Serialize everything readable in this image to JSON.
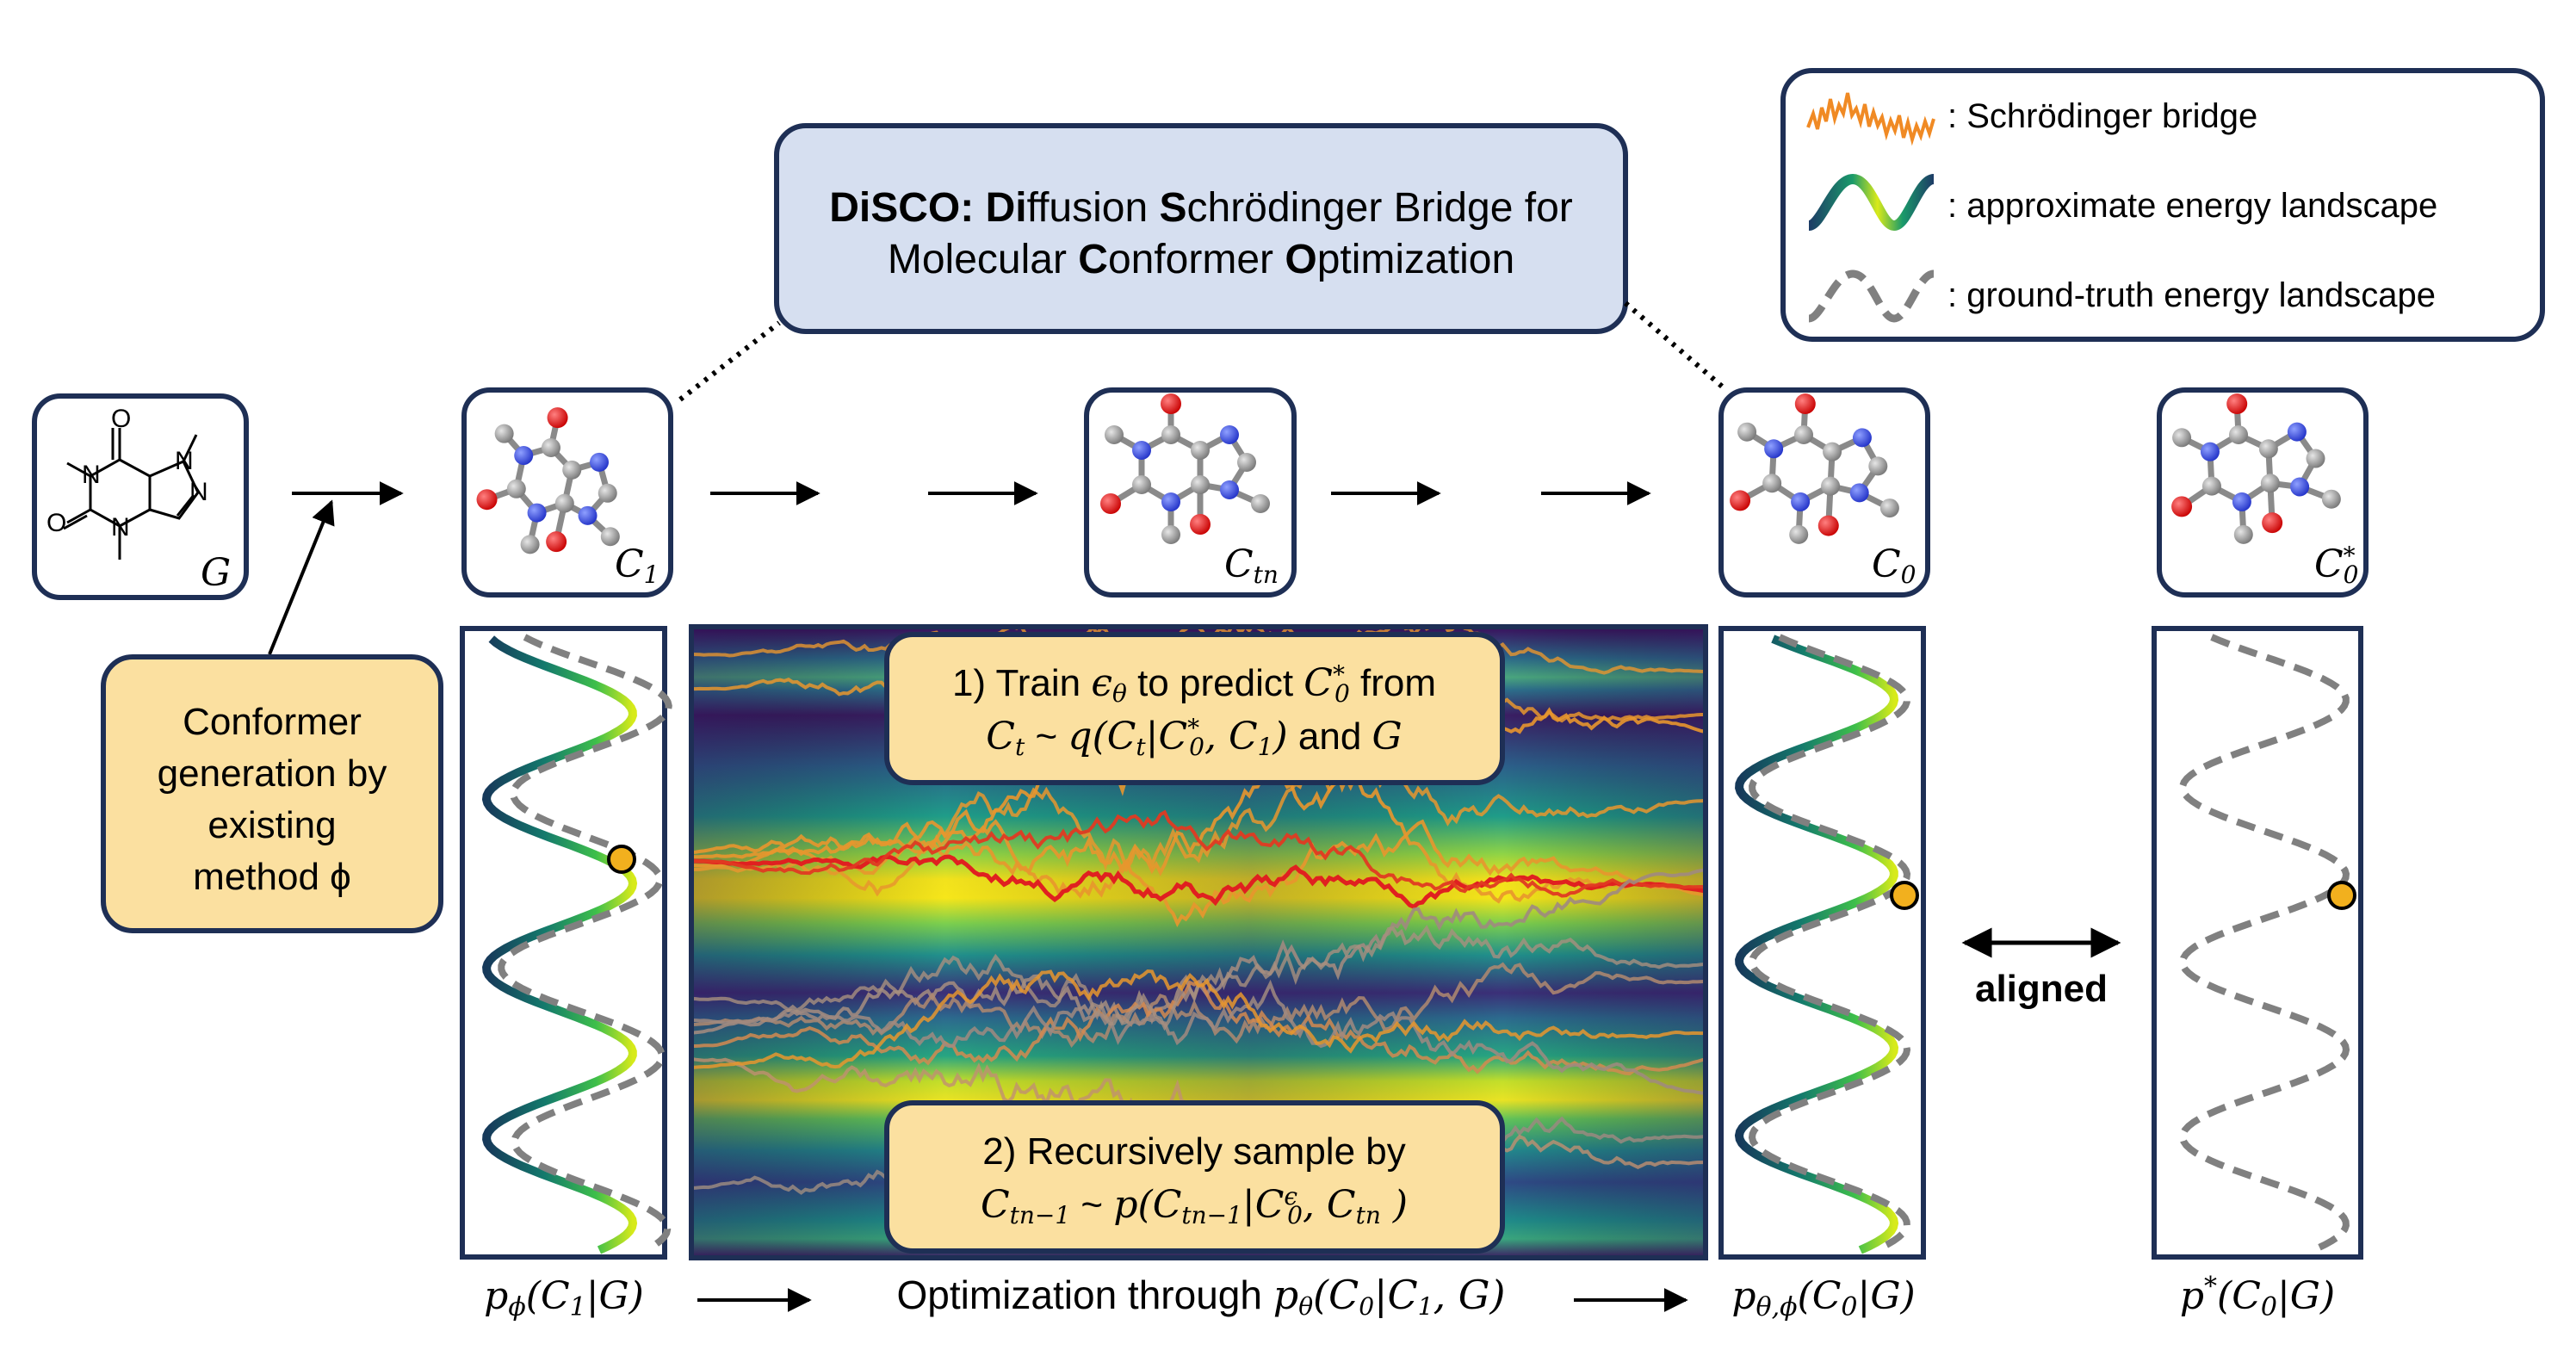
{
  "title_box": {
    "line1_parts": [
      {
        "text": "DiSCO: ",
        "bold": true
      },
      {
        "text": "Di",
        "bold": true
      },
      {
        "text": "ffusion ",
        "bold": false
      },
      {
        "text": "S",
        "bold": true
      },
      {
        "text": "chrödinger Bridge for",
        "bold": false
      }
    ],
    "line2_parts": [
      {
        "text": "Molecular ",
        "bold": false
      },
      {
        "text": "C",
        "bold": true
      },
      {
        "text": "onformer ",
        "bold": false
      },
      {
        "text": "O",
        "bold": true
      },
      {
        "text": "ptimization",
        "bold": false
      }
    ]
  },
  "legend": {
    "items": [
      {
        "label": ": Schrödinger bridge"
      },
      {
        "label": ": approximate energy landscape"
      },
      {
        "label": ": ground-truth energy landscape"
      }
    ]
  },
  "conformers": [
    {
      "sym": "G",
      "sub": "",
      "sup": ""
    },
    {
      "sym": "C",
      "sub": "1",
      "sup": ""
    },
    {
      "sym": "C",
      "sub": "tn",
      "sup": ""
    },
    {
      "sym": "C",
      "sub": "0",
      "sup": ""
    },
    {
      "sym": "C",
      "sub": "0",
      "sup": "*"
    }
  ],
  "generation_box": {
    "lines": [
      "Conformer",
      "generation by",
      "existing",
      "method ϕ"
    ]
  },
  "train_box": {
    "line1": "1)  Train ϵθ to predict C0* from",
    "line2": "Ct ~ q(Ct|C0*, C1) and G"
  },
  "sample_box": {
    "line1": "2) Recursively sample by",
    "line2": "Ctn−1 ~ p(Ctn−1|C0ϵ, Ctn )"
  },
  "aligned_label": "aligned",
  "bottom_labels": {
    "left": "pϕ(C1|G)",
    "middle_prefix": "Optimization through",
    "middle_formula": "pθ(C0|C1, G)",
    "right1": "pθ,ϕ(C0|G)",
    "right2": "p*(C0|G)"
  },
  "colors": {
    "panel_border": "#1e2f55",
    "title_fill": "#d6dff0",
    "callout_fill": "#fbe0a0",
    "bridge": "#f08a24",
    "ground_truth": "#808080",
    "marker": "#f2b01e"
  }
}
